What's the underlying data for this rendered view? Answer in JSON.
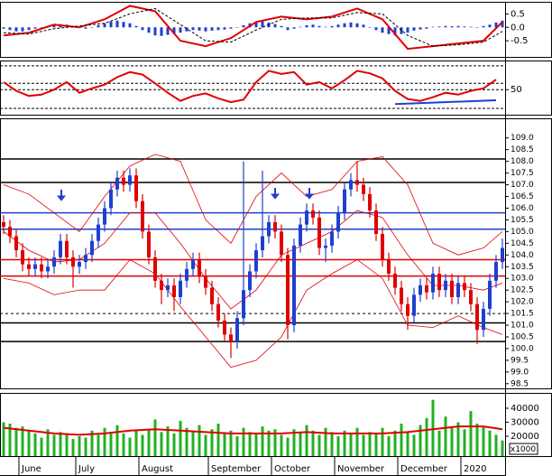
{
  "chart_data": [
    {
      "type": "macd",
      "ylim": [
        -1.1,
        0.95
      ],
      "yticks": [
        0.5,
        {
          "value": 0,
          "label": "0.0"
        },
        -0.5
      ],
      "histogram": {
        "color": "#1f3fd0",
        "values": [
          -0.05,
          -0.1,
          -0.15,
          -0.15,
          -0.1,
          -0.05,
          0,
          0.05,
          0.08,
          0.12,
          0.1,
          0.05,
          0,
          -0.05,
          0,
          0.08,
          0.15,
          0.22,
          0.25,
          0.2,
          0.15,
          0.05,
          -0.1,
          -0.2,
          -0.3,
          -0.32,
          -0.28,
          -0.25,
          -0.2,
          -0.15,
          -0.1,
          -0.12,
          -0.15,
          -0.12,
          -0.1,
          -0.08,
          -0.05,
          0,
          0.08,
          0.15,
          0.2,
          0.22,
          0.18,
          0.12,
          0.05,
          -0.1,
          -0.05,
          0.02,
          0.08,
          0.1,
          0.05,
          0.02,
          0.05,
          0.1,
          0.15,
          0.18,
          0.15,
          0.1,
          0,
          -0.1,
          -0.2,
          -0.25,
          -0.3,
          -0.25,
          -0.2,
          -0.12,
          -0.08,
          -0.05,
          0.02,
          0.03,
          0.05,
          0.04,
          0.05,
          0.03,
          0.02,
          0,
          0.05,
          0.1,
          0.18,
          0.25
        ]
      },
      "series": [
        {
          "color": "#e00000",
          "x": [
            0,
            4,
            8,
            12,
            16,
            20,
            24,
            28,
            32,
            36,
            40,
            44,
            48,
            52,
            56,
            60,
            64,
            68,
            72,
            76,
            79
          ],
          "values": [
            -0.3,
            -0.2,
            0.1,
            0.0,
            0.3,
            0.8,
            0.6,
            -0.5,
            -0.7,
            -0.4,
            0.2,
            0.4,
            0.3,
            0.4,
            0.7,
            0.3,
            -0.8,
            -0.7,
            -0.6,
            -0.5,
            0.2
          ]
        },
        {
          "color": "#000000",
          "dashed": true,
          "x": [
            0,
            4,
            8,
            12,
            16,
            20,
            24,
            28,
            32,
            36,
            40,
            44,
            48,
            52,
            56,
            60,
            64,
            68,
            72,
            76,
            79
          ],
          "values": [
            -0.2,
            -0.25,
            -0.05,
            0.05,
            0.15,
            0.5,
            0.7,
            0.1,
            -0.5,
            -0.55,
            -0.1,
            0.3,
            0.35,
            0.35,
            0.55,
            0.5,
            -0.3,
            -0.7,
            -0.65,
            -0.55,
            -0.15
          ]
        }
      ]
    },
    {
      "type": "line",
      "ylim": [
        10,
        95
      ],
      "yticks": [
        50
      ],
      "levels": [
        88,
        60,
        50,
        20
      ],
      "series": [
        {
          "color": "#e00000",
          "x": [
            0,
            2,
            4,
            6,
            8,
            10,
            12,
            14,
            16,
            18,
            20,
            22,
            24,
            26,
            28,
            30,
            32,
            34,
            36,
            38,
            40,
            42,
            44,
            46,
            48,
            50,
            52,
            54,
            56,
            58,
            60,
            62,
            64,
            66,
            68,
            70,
            72,
            74,
            76,
            78
          ],
          "values": [
            62,
            48,
            40,
            42,
            50,
            62,
            45,
            52,
            58,
            70,
            78,
            74,
            60,
            45,
            32,
            40,
            44,
            36,
            30,
            34,
            62,
            80,
            75,
            78,
            58,
            62,
            52,
            65,
            80,
            76,
            68,
            48,
            35,
            32,
            38,
            45,
            42,
            48,
            52,
            66
          ]
        }
      ],
      "trendline": {
        "color": "#1f3fd0",
        "x": [
          62,
          78
        ],
        "values": [
          27,
          33
        ]
      }
    },
    {
      "type": "candlestick",
      "ylim": [
        98.3,
        109.8
      ],
      "yticks": [
        98.5,
        {
          "value": 99,
          "label": "99.0"
        },
        99.5,
        {
          "value": 100,
          "label": "100.0"
        },
        100.5,
        {
          "value": 101,
          "label": "101.0"
        },
        101.5,
        {
          "value": 102,
          "label": "102.0"
        },
        102.5,
        {
          "value": 103,
          "label": "103.0"
        },
        103.5,
        {
          "value": 104,
          "label": "104.0"
        },
        104.5,
        {
          "value": 105,
          "label": "105.0"
        },
        105.5,
        {
          "value": 106,
          "label": "106.0"
        },
        106.5,
        {
          "value": 107,
          "label": "107.0"
        },
        107.5,
        {
          "value": 108,
          "label": "108.0"
        },
        108.5,
        {
          "value": 109,
          "label": "109.0"
        }
      ],
      "up_color": "#1f3fd0",
      "down_color": "#e00000",
      "open": [
        105.4,
        105.2,
        104.8,
        104.2,
        103.6,
        103.4,
        103.6,
        103.3,
        103.5,
        103.9,
        104.6,
        103.9,
        103.5,
        103.7,
        104.0,
        104.6,
        105.3,
        106.0,
        106.8,
        107.3,
        107.0,
        107.4,
        106.3,
        105.0,
        103.9,
        102.9,
        102.5,
        102.7,
        102.2,
        102.9,
        103.4,
        103.8,
        103.1,
        102.6,
        101.9,
        101.2,
        100.6,
        100.3,
        101.3,
        102.5,
        103.3,
        104.2,
        104.8,
        105.4,
        105.0,
        104.0,
        101.0,
        104.4,
        105.3,
        105.9,
        105.6,
        104.3,
        104.4,
        105.0,
        105.8,
        106.8,
        107.2,
        107.0,
        106.6,
        105.9,
        104.9,
        103.8,
        103.2,
        102.6,
        101.9,
        101.4,
        102.3,
        102.7,
        102.4,
        103.2,
        102.5,
        102.9,
        102.2,
        102.8,
        102.5,
        101.9,
        100.8,
        101.7,
        102.9,
        103.7
      ],
      "high": [
        105.7,
        105.5,
        105.1,
        104.5,
        103.9,
        103.9,
        103.9,
        103.8,
        104.2,
        104.9,
        104.9,
        104.2,
        104.0,
        104.3,
        104.9,
        105.6,
        106.3,
        107.1,
        107.6,
        107.6,
        107.7,
        107.7,
        106.6,
        105.3,
        104.2,
        103.2,
        103.0,
        103.0,
        103.2,
        103.7,
        104.1,
        104.1,
        103.4,
        102.9,
        102.2,
        101.5,
        100.9,
        101.6,
        108.0,
        103.6,
        104.5,
        107.6,
        105.7,
        105.7,
        105.3,
        104.3,
        104.7,
        105.6,
        106.2,
        106.2,
        105.9,
        104.7,
        105.3,
        106.1,
        107.1,
        107.5,
        108.0,
        107.3,
        106.9,
        106.2,
        105.2,
        104.1,
        103.5,
        102.9,
        102.2,
        102.6,
        103.0,
        103.0,
        103.5,
        103.5,
        103.2,
        103.2,
        103.1,
        103.1,
        102.8,
        102.2,
        102.0,
        103.2,
        104.0,
        104.7
      ],
      "low": [
        104.9,
        104.5,
        103.9,
        103.3,
        103.1,
        103.1,
        103.0,
        103.0,
        103.2,
        103.6,
        103.6,
        102.6,
        103.2,
        103.4,
        103.7,
        104.3,
        105.0,
        105.7,
        106.5,
        106.7,
        106.7,
        106.0,
        104.7,
        103.6,
        102.6,
        101.9,
        102.2,
        101.6,
        101.9,
        102.6,
        103.1,
        102.8,
        102.3,
        101.6,
        100.9,
        100.3,
        99.6,
        100.0,
        101.0,
        102.2,
        103.0,
        103.9,
        104.5,
        104.7,
        103.7,
        100.4,
        100.7,
        104.1,
        105.0,
        105.3,
        104.0,
        103.7,
        104.1,
        104.7,
        105.5,
        106.5,
        106.7,
        106.3,
        105.6,
        104.6,
        103.5,
        102.9,
        102.3,
        101.6,
        100.8,
        101.1,
        102.0,
        102.1,
        102.1,
        102.2,
        102.2,
        101.9,
        101.9,
        102.2,
        101.6,
        100.2,
        100.5,
        101.4,
        102.6,
        103.4
      ],
      "close": [
        105.2,
        104.8,
        104.2,
        103.6,
        103.4,
        103.6,
        103.3,
        103.5,
        103.9,
        104.6,
        103.9,
        103.5,
        103.7,
        104.0,
        104.6,
        105.3,
        106.0,
        106.8,
        107.3,
        107.0,
        107.4,
        106.3,
        105.0,
        103.9,
        102.9,
        102.5,
        102.7,
        102.2,
        102.9,
        103.4,
        103.8,
        103.1,
        102.6,
        101.9,
        101.2,
        100.6,
        100.3,
        101.3,
        102.5,
        103.3,
        104.2,
        104.8,
        105.4,
        105.0,
        104.0,
        101.0,
        104.4,
        105.3,
        105.9,
        105.6,
        104.3,
        104.4,
        105.0,
        105.8,
        106.8,
        107.2,
        107.0,
        106.6,
        105.9,
        104.9,
        103.8,
        103.2,
        102.6,
        101.9,
        101.4,
        102.3,
        102.7,
        102.4,
        103.2,
        102.5,
        102.9,
        102.2,
        102.8,
        102.5,
        101.9,
        100.8,
        101.7,
        102.9,
        103.7,
        104.3
      ],
      "bands": {
        "color": "#e00000",
        "x": [
          0,
          4,
          8,
          12,
          16,
          20,
          24,
          28,
          32,
          36,
          40,
          44,
          48,
          52,
          56,
          60,
          64,
          68,
          72,
          76,
          79
        ],
        "upper": [
          107.0,
          106.6,
          105.8,
          105.0,
          106.5,
          107.8,
          108.3,
          108.0,
          105.5,
          104.5,
          106.5,
          107.5,
          106.5,
          106.8,
          108.0,
          108.2,
          107.0,
          104.5,
          104.0,
          104.3,
          105.0
        ],
        "middle": [
          105.0,
          104.2,
          103.7,
          103.8,
          104.5,
          105.8,
          105.8,
          104.5,
          103.0,
          101.7,
          102.5,
          104.0,
          104.5,
          105.0,
          105.9,
          105.6,
          104.0,
          102.7,
          102.7,
          102.5,
          102.8
        ],
        "lower": [
          103.0,
          102.8,
          102.3,
          102.5,
          102.5,
          103.8,
          103.2,
          101.8,
          100.5,
          99.2,
          99.5,
          100.5,
          102.5,
          103.2,
          103.8,
          103.0,
          101.0,
          100.9,
          101.4,
          100.9,
          100.6
        ]
      },
      "levels": [
        {
          "value": 108.1,
          "color": "#000000"
        },
        {
          "value": 107.1,
          "color": "#000000"
        },
        {
          "value": 105.8,
          "color": "#1f3fd0"
        },
        {
          "value": 105.1,
          "color": "#1f3fd0"
        },
        {
          "value": 103.8,
          "color": "#e00000"
        },
        {
          "value": 103.1,
          "color": "#e00000"
        },
        {
          "value": 101.5,
          "color": "#000000",
          "dashed": true
        },
        {
          "value": 101.1,
          "color": "#000000"
        },
        {
          "value": 100.3,
          "color": "#000000"
        }
      ]
    },
    {
      "type": "bar",
      "ylim": [
        5800,
        50300
      ],
      "yticks": [
        20000,
        30000,
        40000
      ],
      "unit_label": "x1000",
      "color": "#22b022",
      "categories": [
        null,
        null,
        null,
        "June",
        null,
        null,
        null,
        null,
        null,
        null,
        null,
        null,
        "July",
        null,
        null,
        null,
        null,
        null,
        null,
        null,
        null,
        null,
        "August",
        null,
        null,
        null,
        null,
        null,
        null,
        null,
        null,
        null,
        null,
        "September",
        null,
        null,
        null,
        null,
        null,
        null,
        null,
        null,
        null,
        "October",
        null,
        null,
        null,
        null,
        null,
        null,
        null,
        null,
        null,
        "November",
        null,
        null,
        null,
        null,
        null,
        null,
        null,
        null,
        null,
        "December",
        null,
        null,
        null,
        null,
        null,
        null,
        null,
        null,
        null,
        "2020",
        null,
        null,
        null,
        null,
        null,
        null
      ],
      "values": [
        30000,
        29000,
        26000,
        27000,
        24000,
        22000,
        19000,
        25000,
        21000,
        23000,
        22000,
        18000,
        20000,
        19000,
        24000,
        21000,
        26000,
        23000,
        28000,
        22000,
        19000,
        24000,
        21000,
        25000,
        32000,
        23000,
        27000,
        22000,
        31000,
        26000,
        24000,
        28000,
        21000,
        25000,
        29000,
        22000,
        24000,
        20000,
        26000,
        23000,
        22000,
        27000,
        24000,
        25000,
        21000,
        19000,
        25000,
        23000,
        28000,
        24000,
        21000,
        26000,
        23000,
        20000,
        24000,
        22000,
        26000,
        21000,
        23000,
        22000,
        26000,
        20000,
        24000,
        29000,
        23000,
        21000,
        28000,
        33000,
        46000,
        24000,
        34000,
        27000,
        30000,
        25000,
        38000,
        29000,
        27000,
        24000,
        21000,
        17000
      ],
      "average": {
        "color": "#e00000",
        "x": [
          0,
          4,
          8,
          12,
          16,
          20,
          24,
          28,
          32,
          36,
          40,
          44,
          48,
          52,
          56,
          60,
          64,
          68,
          72,
          76,
          79
        ],
        "values": [
          26000,
          24000,
          22000,
          21000,
          22000,
          24000,
          25000,
          24000,
          23000,
          22000,
          22000,
          22000,
          23000,
          22000,
          22000,
          22000,
          23000,
          25000,
          27000,
          27000,
          25000
        ]
      }
    }
  ]
}
